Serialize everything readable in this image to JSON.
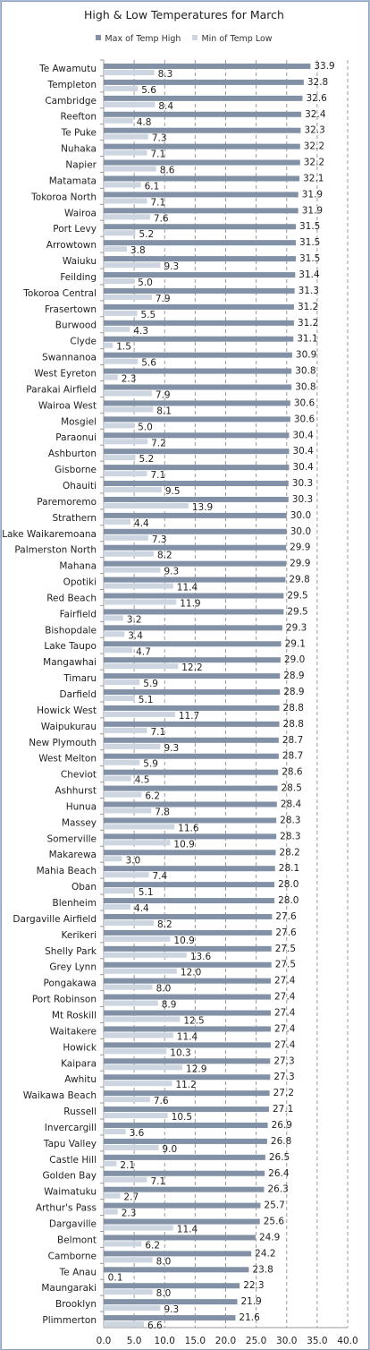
{
  "chart_data": {
    "type": "bar",
    "orientation": "horizontal",
    "title": "High & Low Temperatures for March",
    "legend_position": "top",
    "xlabel": "",
    "ylabel": "",
    "xlim": [
      0,
      40
    ],
    "x_ticks": [
      "0.0",
      "5.0",
      "10.0",
      "15.0",
      "20.0",
      "25.0",
      "30.0",
      "35.0",
      "40.0"
    ],
    "grid": "vertical dashed",
    "categories": [
      "Te Awamutu",
      "Templeton",
      "Cambridge",
      "Reefton",
      "Te Puke",
      "Nuhaka",
      "Napier",
      "Matamata",
      "Tokoroa North",
      "Wairoa",
      "Port Levy",
      "Arrowtown",
      "Waiuku",
      "Feilding",
      "Tokoroa Central",
      "Frasertown",
      "Burwood",
      "Clyde",
      "Swannanoa",
      "West Eyreton",
      "Parakai Airfield",
      "Wairoa West",
      "Mosgiel",
      "Paraonui",
      "Ashburton",
      "Gisborne",
      "Ohauiti",
      "Paremoremo",
      "Strathern",
      "Lake Waikaremoana",
      "Palmerston North",
      "Mahana",
      "Opotiki",
      "Red Beach",
      "Fairfield",
      "Bishopdale",
      "Lake Taupo",
      "Mangawhai",
      "Timaru",
      "Darfield",
      "Howick West",
      "Waipukurau",
      "New Plymouth",
      "West Melton",
      "Cheviot",
      "Ashhurst",
      "Hunua",
      "Massey",
      "Somerville",
      "Makarewa",
      "Mahia Beach",
      "Oban",
      "Blenheim",
      "Dargaville Airfield",
      "Kerikeri",
      "Shelly Park",
      "Grey Lynn",
      "Pongakawa",
      "Port Robinson",
      "Mt Roskill",
      "Waitakere",
      "Howick",
      "Kaipara",
      "Awhitu",
      "Waikawa Beach",
      "Russell",
      "Invercargill",
      "Tapu Valley",
      "Castle Hill",
      "Golden Bay",
      "Waimatuku",
      "Arthur's Pass",
      "Dargaville",
      "Belmont",
      "Camborne",
      "Te Anau",
      "Maungaraki",
      "Brooklyn",
      "Plimmerton"
    ],
    "series": [
      {
        "name": "Max of Temp High",
        "color": "#8291a6",
        "values": [
          33.9,
          32.8,
          32.6,
          32.4,
          32.3,
          32.2,
          32.2,
          32.1,
          31.9,
          31.9,
          31.5,
          31.5,
          31.5,
          31.4,
          31.3,
          31.2,
          31.2,
          31.1,
          30.9,
          30.8,
          30.8,
          30.6,
          30.6,
          30.4,
          30.4,
          30.4,
          30.3,
          30.3,
          30.0,
          30.0,
          29.9,
          29.9,
          29.8,
          29.5,
          29.5,
          29.3,
          29.1,
          29.0,
          28.9,
          28.9,
          28.8,
          28.8,
          28.7,
          28.7,
          28.6,
          28.5,
          28.4,
          28.3,
          28.3,
          28.2,
          28.1,
          28.0,
          28.0,
          27.6,
          27.6,
          27.5,
          27.5,
          27.4,
          27.4,
          27.4,
          27.4,
          27.4,
          27.3,
          27.3,
          27.2,
          27.1,
          26.9,
          26.8,
          26.5,
          26.4,
          26.3,
          25.7,
          25.6,
          24.9,
          24.2,
          23.8,
          22.3,
          21.9,
          21.6
        ]
      },
      {
        "name": "Min of Temp Low",
        "color": "#cdd5e0",
        "values": [
          8.3,
          5.6,
          8.4,
          4.8,
          7.3,
          7.1,
          8.6,
          6.1,
          7.1,
          7.6,
          5.2,
          3.8,
          9.3,
          5.0,
          7.9,
          5.5,
          4.3,
          1.5,
          5.6,
          2.3,
          7.9,
          8.1,
          5.0,
          7.2,
          5.2,
          7.1,
          9.5,
          13.9,
          4.4,
          7.3,
          8.2,
          9.3,
          11.4,
          11.9,
          3.2,
          3.4,
          4.7,
          12.2,
          5.9,
          5.1,
          11.7,
          7.1,
          9.3,
          5.9,
          4.5,
          6.2,
          7.8,
          11.6,
          10.9,
          3.0,
          7.4,
          5.1,
          4.4,
          8.2,
          10.9,
          13.6,
          12.0,
          8.0,
          8.9,
          12.5,
          11.4,
          10.3,
          12.9,
          11.2,
          7.6,
          10.5,
          3.6,
          9.0,
          2.1,
          7.1,
          2.7,
          2.3,
          11.4,
          6.2,
          8.0,
          0.1,
          8.0,
          9.3,
          6.6
        ]
      }
    ]
  }
}
